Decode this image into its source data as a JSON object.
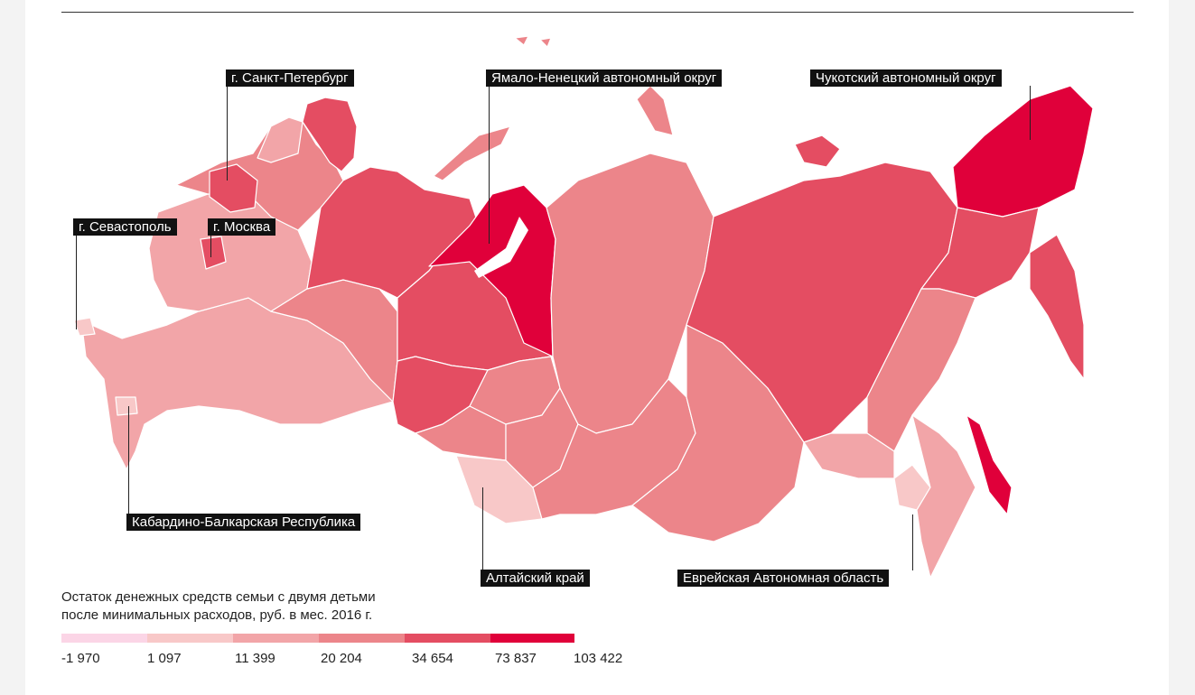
{
  "labels": {
    "spb": "г. Санкт-Петербург",
    "yamal": "Ямало-Ненецкий автономный округ",
    "chukotka": "Чукотский автономный округ",
    "sevastopol": "г. Севастополь",
    "moscow": "г. Москва",
    "kbr": "Кабардино-Балкарская Республика",
    "altai": "Алтайский край",
    "jewish": "Еврейская Автономная область"
  },
  "legend": {
    "title_line1": "Остаток денежных средств семьи с двумя детьми",
    "title_line2": "после минимальных расходов, руб. в мес. 2016 г.",
    "ticks": [
      "-1 970",
      "1 097",
      "11 399",
      "20 204",
      "34 654",
      "73 837",
      "103 422"
    ],
    "colors": [
      "#fbd5e6",
      "#f8c8c8",
      "#f2a5a8",
      "#ec858a",
      "#e44d62",
      "#e0003a"
    ]
  }
}
